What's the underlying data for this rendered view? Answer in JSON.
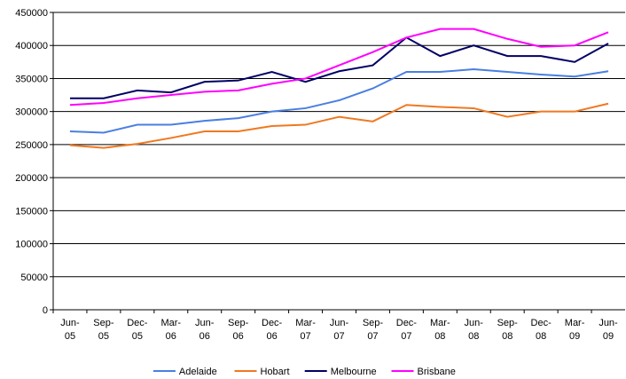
{
  "chart_data": {
    "type": "line",
    "categories": [
      "Jun-05",
      "Sep-05",
      "Dec-05",
      "Mar-06",
      "Jun-06",
      "Sep-06",
      "Dec-06",
      "Mar-07",
      "Jun-07",
      "Sep-07",
      "Dec-07",
      "Mar-08",
      "Jun-08",
      "Sep-08",
      "Dec-08",
      "Mar-09",
      "Jun-09"
    ],
    "series": [
      {
        "name": "Adelaide",
        "color": "#4a7fe0",
        "values": [
          270000,
          268000,
          280000,
          280000,
          286000,
          290000,
          300000,
          305000,
          317000,
          335000,
          360000,
          360000,
          364000,
          360000,
          356000,
          353000,
          361000
        ]
      },
      {
        "name": "Hobart",
        "color": "#f07820",
        "values": [
          249000,
          245000,
          251000,
          260000,
          270000,
          270000,
          278000,
          280000,
          292000,
          285000,
          310000,
          307000,
          305000,
          292000,
          300000,
          300000,
          312000
        ]
      },
      {
        "name": "Melbourne",
        "color": "#000066",
        "values": [
          320000,
          320000,
          332000,
          329000,
          345000,
          347000,
          360000,
          345000,
          361000,
          370000,
          412000,
          384000,
          400000,
          384000,
          384000,
          375000,
          403000
        ]
      },
      {
        "name": "Brisbane",
        "color": "#ff00ff",
        "values": [
          310000,
          313000,
          320000,
          325000,
          330000,
          332000,
          342000,
          350000,
          370000,
          390000,
          412000,
          425000,
          425000,
          410000,
          398000,
          400000,
          420000
        ]
      }
    ],
    "ylim": [
      0,
      450000
    ],
    "yticks": [
      0,
      50000,
      100000,
      150000,
      200000,
      250000,
      300000,
      350000,
      400000,
      450000
    ],
    "grid": true,
    "legend": "bottom"
  }
}
